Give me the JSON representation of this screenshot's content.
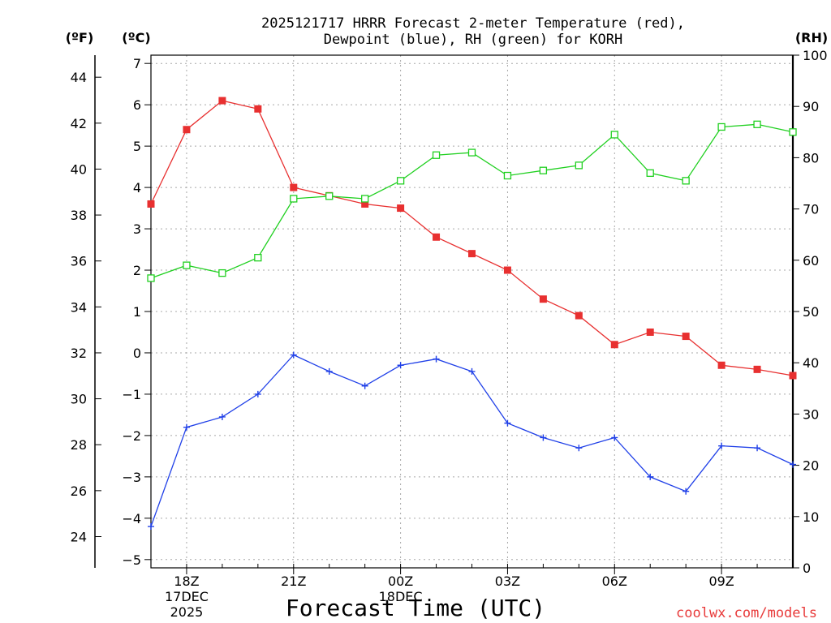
{
  "chart_data": {
    "type": "line",
    "title_line1": "2025121717 HRRR Forecast 2-meter Temperature (red),",
    "title_line2": "Dewpoint (blue), RH (green) for KORH",
    "xlabel": "Forecast Time (UTC)",
    "credit": "coolwx.com/models",
    "unit_f": "(ºF)",
    "unit_c": "(ºC)",
    "unit_rh": "(RH)",
    "hours": [
      17,
      18,
      19,
      20,
      21,
      22,
      23,
      24,
      25,
      26,
      27,
      28,
      29,
      30,
      31,
      32,
      33,
      34,
      35
    ],
    "x_ticks": [
      {
        "hour": 18,
        "label": "18Z"
      },
      {
        "hour": 21,
        "label": "21Z"
      },
      {
        "hour": 24,
        "label": "00Z"
      },
      {
        "hour": 27,
        "label": "03Z"
      },
      {
        "hour": 30,
        "label": "06Z"
      },
      {
        "hour": 33,
        "label": "09Z"
      }
    ],
    "date_labels": [
      {
        "hour": 18,
        "line1": "17DEC",
        "line2": "2025"
      },
      {
        "hour": 24,
        "line1": "18DEC",
        "line2": ""
      }
    ],
    "ylim_c": [
      -5.2,
      7.2
    ],
    "yticks_c": [
      -5,
      -4,
      -3,
      -2,
      -1,
      0,
      1,
      2,
      3,
      4,
      5,
      6,
      7
    ],
    "yticks_f": [
      24,
      26,
      28,
      30,
      32,
      34,
      36,
      38,
      40,
      42,
      44
    ],
    "ylim_rh": [
      0,
      100
    ],
    "yticks_rh": [
      0,
      10,
      20,
      30,
      40,
      50,
      60,
      70,
      80,
      90,
      100
    ],
    "series": [
      {
        "name": "Temperature",
        "axis": "C",
        "color": "#e83030",
        "marker": "filled-square",
        "values": [
          3.6,
          5.4,
          6.1,
          5.9,
          4.0,
          3.8,
          3.6,
          3.5,
          2.8,
          2.4,
          2.0,
          1.3,
          0.9,
          0.2,
          0.5,
          0.4,
          -0.3,
          -0.4,
          -0.55
        ]
      },
      {
        "name": "Dewpoint",
        "axis": "C",
        "color": "#2040e8",
        "marker": "plus",
        "values": [
          -4.2,
          -1.8,
          -1.55,
          -1.0,
          -0.05,
          -0.45,
          -0.8,
          -0.3,
          -0.15,
          -0.45,
          -1.7,
          -2.05,
          -2.3,
          -2.05,
          -3.0,
          -3.35,
          -2.25,
          -2.3,
          -2.7
        ]
      },
      {
        "name": "RH",
        "axis": "RH",
        "color": "#20d020",
        "marker": "open-square",
        "values": [
          56.5,
          59.0,
          57.5,
          60.5,
          72.0,
          72.5,
          72.0,
          75.5,
          80.5,
          81.0,
          76.5,
          77.5,
          78.5,
          84.5,
          77.0,
          75.5,
          86.0,
          86.5,
          85.0
        ]
      }
    ]
  }
}
